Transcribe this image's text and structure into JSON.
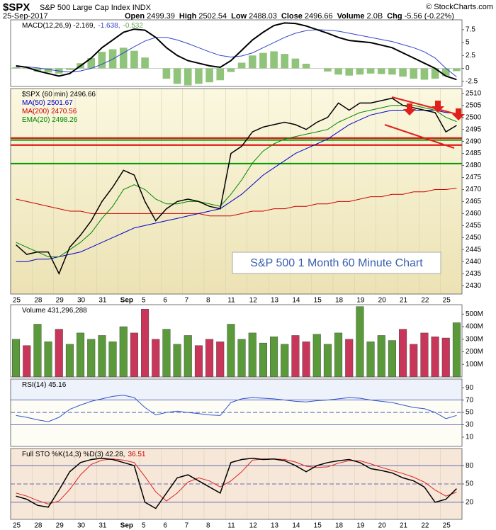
{
  "header": {
    "symbol": "$SPX",
    "name": "S&P 500 Large Cap Index",
    "exchange": "INDX",
    "date": "25-Sep-2017",
    "copyright": "© StockCharts.com",
    "quote": [
      [
        "Open",
        "2499.39"
      ],
      [
        "High",
        "2502.54"
      ],
      [
        "Low",
        "2488.03"
      ],
      [
        "Close",
        "2496.66"
      ],
      [
        "Volume",
        "2.0B"
      ],
      [
        "Chg",
        "-5.56 (-0.22%)"
      ]
    ]
  },
  "annotation": "S&P 500 1 Month 60 Minute Chart",
  "chart_data": [
    {
      "type": "line",
      "xlim": [
        0,
        42
      ],
      "ylim": [
        -3.5,
        9.4
      ],
      "yticks": [
        -2.5,
        0,
        2.5,
        5,
        7.5
      ],
      "zero_line": true,
      "legend": [
        [
          {
            "text": "MACD(12,26,9) -2.169,",
            "color": "#000000"
          },
          {
            "text": "-1.638,",
            "color": "#3344cc"
          },
          {
            "text": "-0.532",
            "color": "#66aa55"
          }
        ]
      ],
      "series": [
        {
          "name": "Histogram",
          "kind": "bar",
          "color": "#8fc47a",
          "values": [
            0.2,
            -0.1,
            -0.6,
            -0.8,
            -1.0,
            -0.3,
            1.0,
            2.0,
            3.2,
            3.7,
            4.0,
            3.4,
            2.1,
            0,
            -2.0,
            -3.0,
            -3.3,
            -3.0,
            -2.7,
            -2.3,
            -0.7,
            1.1,
            2.5,
            3.0,
            3.3,
            2.8,
            1.9,
            0.9,
            0,
            -0.6,
            -1.2,
            -1.4,
            -1.2,
            -1.0,
            -1.1,
            -1.2,
            -1.6,
            -2.0,
            -2.2,
            -2.0,
            -1.5,
            -0.532
          ]
        },
        {
          "name": "Signal",
          "color": "#3344cc",
          "values": [
            0.3,
            0.3,
            0.1,
            -0.2,
            -0.5,
            -0.7,
            -0.5,
            0,
            0.8,
            1.8,
            3.0,
            4.2,
            5.3,
            6.0,
            6.0,
            5.5,
            4.8,
            4.0,
            3.2,
            2.5,
            2.2,
            2.4,
            3.0,
            4.0,
            5.0,
            6.0,
            6.8,
            7.3,
            7.5,
            7.4,
            7.2,
            6.8,
            6.4,
            6.0,
            5.6,
            5.2,
            4.6,
            4.0,
            3.2,
            2.0,
            0.0,
            -1.638
          ]
        },
        {
          "name": "MACD",
          "color": "#000000",
          "width": 2,
          "values": [
            0.5,
            0.2,
            -0.5,
            -1.0,
            -1.5,
            -1.0,
            0.5,
            2.0,
            4.0,
            5.5,
            7.0,
            7.6,
            7.4,
            6.0,
            4.0,
            2.5,
            1.5,
            1.0,
            0.5,
            0.2,
            1.5,
            3.5,
            5.5,
            7.0,
            8.3,
            8.8,
            8.7,
            8.2,
            7.5,
            6.8,
            6.0,
            5.4,
            5.2,
            5.0,
            4.5,
            4.0,
            3.0,
            2.0,
            1.0,
            0.0,
            -1.5,
            -2.169
          ]
        }
      ]
    },
    {
      "type": "line",
      "xlim": [
        0,
        42
      ],
      "ylim": [
        2426.5,
        2512
      ],
      "yticks": [
        2430,
        2435,
        2440,
        2445,
        2450,
        2455,
        2460,
        2465,
        2470,
        2475,
        2480,
        2485,
        2490,
        2495,
        2500,
        2505,
        2510
      ],
      "xticks": [
        {
          "value": 0,
          "label": "25"
        },
        {
          "value": 2,
          "label": "28"
        },
        {
          "value": 4,
          "label": "29"
        },
        {
          "value": 6,
          "label": "30"
        },
        {
          "value": 8,
          "label": "31"
        },
        {
          "value": 10,
          "label": "Sep"
        },
        {
          "value": 12,
          "label": "5"
        },
        {
          "value": 14,
          "label": "6"
        },
        {
          "value": 16,
          "label": "7"
        },
        {
          "value": 18,
          "label": "8"
        },
        {
          "value": 20,
          "label": "11"
        },
        {
          "value": 22,
          "label": "12"
        },
        {
          "value": 24,
          "label": "13"
        },
        {
          "value": 26,
          "label": "14"
        },
        {
          "value": 28,
          "label": "15"
        },
        {
          "value": 30,
          "label": "18"
        },
        {
          "value": 32,
          "label": "19"
        },
        {
          "value": 34,
          "label": "20"
        },
        {
          "value": 36,
          "label": "21"
        },
        {
          "value": 38,
          "label": "22"
        },
        {
          "value": 40,
          "label": "25"
        }
      ],
      "hlines": [
        {
          "value": 2491.4,
          "color": "#dd0000"
        },
        {
          "value": 2488.5,
          "color": "#dd0000"
        },
        {
          "value": 2490.6,
          "color": "#009900"
        },
        {
          "value": 2480.8,
          "color": "#009900"
        }
      ],
      "legend": [
        [
          {
            "text": "$SPX (60 min) 2496.66",
            "color": "#000000"
          }
        ],
        [
          {
            "text": "MA(50) 2501.67",
            "color": "#0000cc"
          }
        ],
        [
          {
            "text": "MA(200) 2470.56",
            "color": "#cc0000"
          }
        ],
        [
          {
            "text": "EMA(20) 2498.26",
            "color": "#008800"
          }
        ]
      ],
      "series": [
        {
          "name": "MA(200)",
          "color": "#cc0000",
          "values": [
            2466,
            2465,
            2464,
            2463,
            2462,
            2461,
            2461,
            2460,
            2460,
            2460,
            2460,
            2460,
            2460,
            2460,
            2460,
            2460,
            2460,
            2460,
            2459,
            2459,
            2459,
            2460,
            2461,
            2461,
            2462,
            2462,
            2463,
            2463,
            2464,
            2464,
            2465,
            2465,
            2466,
            2467,
            2467,
            2468,
            2468,
            2469,
            2469,
            2470,
            2470,
            2470.56
          ]
        },
        {
          "name": "MA(50)",
          "color": "#0000cc",
          "values": [
            2440,
            2440,
            2441,
            2441,
            2442,
            2443,
            2444,
            2446,
            2448,
            2450,
            2452,
            2454,
            2455,
            2456,
            2457,
            2458,
            2459,
            2460,
            2461,
            2462,
            2465,
            2468,
            2472,
            2476,
            2479,
            2482,
            2485,
            2487,
            2489,
            2491,
            2494,
            2497,
            2499,
            2501,
            2502,
            2503,
            2503,
            2503,
            2503,
            2503,
            2502,
            2501.67
          ]
        },
        {
          "name": "EMA(20)",
          "color": "#008800",
          "values": [
            2448,
            2446,
            2444,
            2442,
            2442,
            2445,
            2448,
            2452,
            2458,
            2463,
            2470,
            2472,
            2470,
            2466,
            2464,
            2464,
            2465,
            2465,
            2464,
            2463,
            2468,
            2474,
            2481,
            2486,
            2489,
            2491,
            2492,
            2493,
            2494,
            2495,
            2498,
            2500,
            2502,
            2503,
            2504,
            2505,
            2505,
            2505,
            2504,
            2503,
            2500,
            2498.26
          ]
        },
        {
          "name": "$SPX (60 min)",
          "color": "#000000",
          "width": 1.5,
          "values": [
            2447,
            2443,
            2444,
            2444,
            2435,
            2446,
            2451,
            2457,
            2465,
            2471,
            2478,
            2476,
            2465,
            2457,
            2462,
            2465,
            2466,
            2465,
            2463,
            2462,
            2485,
            2488,
            2494,
            2496,
            2497,
            2498,
            2497,
            2495,
            2498,
            2500,
            2506,
            2503,
            2506,
            2506,
            2507,
            2508,
            2505,
            2504,
            2503,
            2502,
            2494,
            2496.66
          ]
        }
      ]
    },
    {
      "type": "bar",
      "xlim": [
        0,
        42
      ],
      "ylim": [
        0,
        575000000
      ],
      "yticks": [
        {
          "value": 100000000,
          "label": "100M"
        },
        {
          "value": 200000000,
          "label": "200M"
        },
        {
          "value": 300000000,
          "label": "300M"
        },
        {
          "value": 400000000,
          "label": "400M"
        },
        {
          "value": 500000000,
          "label": "500M"
        }
      ],
      "legend": [
        [
          {
            "text": "Volume 431,296,288",
            "color": "#000000"
          }
        ]
      ],
      "series": [
        {
          "name": "Volume",
          "up_color": "#5a9a3a",
          "down_color": "#c8375a",
          "values": [
            300000000,
            250000000,
            420000000,
            280000000,
            380000000,
            260000000,
            350000000,
            300000000,
            330000000,
            280000000,
            400000000,
            350000000,
            540000000,
            300000000,
            380000000,
            260000000,
            330000000,
            250000000,
            300000000,
            280000000,
            420000000,
            300000000,
            350000000,
            270000000,
            320000000,
            260000000,
            330000000,
            280000000,
            340000000,
            260000000,
            350000000,
            300000000,
            560000000,
            280000000,
            330000000,
            290000000,
            380000000,
            260000000,
            350000000,
            320000000,
            310000000,
            431296288
          ]
        }
      ]
    },
    {
      "type": "line",
      "xlim": [
        0,
        42
      ],
      "ylim": [
        -5,
        104
      ],
      "yticks": [
        10,
        30,
        50,
        70,
        90
      ],
      "levels": [
        70,
        30
      ],
      "midline": 50,
      "shade_above": 70,
      "legend": [
        [
          {
            "text": "RSI(14) 45.16",
            "color": "#000000"
          }
        ]
      ],
      "series": [
        {
          "name": "RSI(14)",
          "color": "#3355cc",
          "values": [
            45,
            42,
            38,
            35,
            42,
            55,
            62,
            68,
            72,
            76,
            78,
            74,
            58,
            46,
            50,
            52,
            50,
            48,
            46,
            45,
            66,
            72,
            74,
            73,
            72,
            70,
            68,
            67,
            69,
            70,
            72,
            74,
            73,
            70,
            68,
            66,
            62,
            58,
            56,
            50,
            40,
            45.16
          ]
        }
      ]
    },
    {
      "type": "line",
      "xlim": [
        0,
        42
      ],
      "ylim": [
        -8,
        108
      ],
      "yticks": [
        20,
        50,
        80
      ],
      "levels": [
        80,
        20
      ],
      "midline": 50,
      "xticks": [
        {
          "value": 0,
          "label": "25"
        },
        {
          "value": 2,
          "label": "28"
        },
        {
          "value": 4,
          "label": "29"
        },
        {
          "value": 6,
          "label": "30"
        },
        {
          "value": 8,
          "label": "31"
        },
        {
          "value": 10,
          "label": "Sep"
        },
        {
          "value": 12,
          "label": "5"
        },
        {
          "value": 14,
          "label": "6"
        },
        {
          "value": 16,
          "label": "7"
        },
        {
          "value": 18,
          "label": "8"
        },
        {
          "value": 20,
          "label": "11"
        },
        {
          "value": 22,
          "label": "12"
        },
        {
          "value": 24,
          "label": "13"
        },
        {
          "value": 26,
          "label": "14"
        },
        {
          "value": 28,
          "label": "15"
        },
        {
          "value": 30,
          "label": "18"
        },
        {
          "value": 32,
          "label": "19"
        },
        {
          "value": 34,
          "label": "20"
        },
        {
          "value": 36,
          "label": "21"
        },
        {
          "value": 38,
          "label": "22"
        },
        {
          "value": 40,
          "label": "25"
        }
      ],
      "legend": [
        [
          {
            "text": "Full STO %K(14,3) %D(3) 42.28,",
            "color": "#000000"
          },
          {
            "text": "36.51",
            "color": "#cc0000"
          }
        ]
      ],
      "series": [
        {
          "name": "%D",
          "color": "#dd2222",
          "values": [
            35,
            30,
            23,
            17,
            22,
            41,
            65,
            82,
            89,
            91,
            89,
            85,
            62,
            37,
            22,
            35,
            53,
            60,
            55,
            45,
            55,
            70,
            89,
            91,
            91,
            90,
            86,
            79,
            77,
            78,
            84,
            88,
            88,
            83,
            77,
            72,
            67,
            61,
            53,
            40,
            30,
            36.51
          ]
        },
        {
          "name": "%K",
          "color": "#000000",
          "width": 1.5,
          "values": [
            30,
            25,
            15,
            12,
            40,
            70,
            85,
            90,
            92,
            90,
            85,
            80,
            20,
            10,
            35,
            60,
            65,
            55,
            45,
            35,
            85,
            90,
            92,
            90,
            91,
            88,
            80,
            70,
            80,
            85,
            88,
            90,
            85,
            75,
            72,
            68,
            60,
            55,
            45,
            20,
            25,
            42.28
          ]
        }
      ]
    }
  ]
}
